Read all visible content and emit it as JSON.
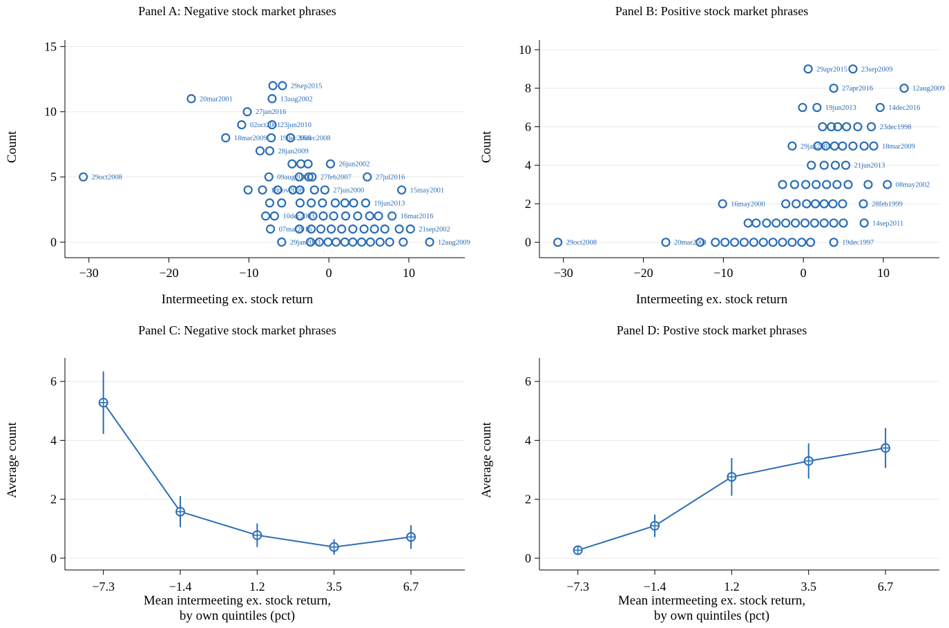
{
  "chart_data": [
    {
      "id": "A",
      "type": "scatter",
      "title": "Panel A: Negative stock market phrases",
      "xlabel": "Intermeeting ex. stock return",
      "xlabel2": "",
      "ylabel": "Count",
      "xlim": [
        -33,
        17
      ],
      "ylim": [
        -1.2,
        15.5
      ],
      "xticks": [
        -30,
        -20,
        -10,
        0,
        10
      ],
      "yticks": [
        0,
        5,
        10,
        15
      ],
      "grid": true,
      "color": "#2a6db5",
      "points": [
        {
          "x": -30.7,
          "y": 5,
          "label": "29oct2008"
        },
        {
          "x": -17.2,
          "y": 11,
          "label": "20mar2001"
        },
        {
          "x": -12.9,
          "y": 8,
          "label": "18mar2009"
        },
        {
          "x": -10.2,
          "y": 10,
          "label": "27jan2016"
        },
        {
          "x": -10.9,
          "y": 9,
          "label": "02oct2001"
        },
        {
          "x": -7.1,
          "y": 9,
          "label": "23jun2010"
        },
        {
          "x": -7.0,
          "y": 12,
          "label": ""
        },
        {
          "x": -5.8,
          "y": 12,
          "label": "29sep2015"
        },
        {
          "x": -7.1,
          "y": 11,
          "label": "13aug2002"
        },
        {
          "x": -7.2,
          "y": 8,
          "label": "19dec2008"
        },
        {
          "x": -4.8,
          "y": 8,
          "label": "16dec2008"
        },
        {
          "x": -8.6,
          "y": 7,
          "label": ""
        },
        {
          "x": -7.4,
          "y": 7,
          "label": "28jan2009"
        },
        {
          "x": -4.6,
          "y": 6,
          "label": ""
        },
        {
          "x": -3.5,
          "y": 6,
          "label": ""
        },
        {
          "x": -2.6,
          "y": 6,
          "label": ""
        },
        {
          "x": 0.2,
          "y": 6,
          "label": "26jun2002"
        },
        {
          "x": -7.5,
          "y": 5,
          "label": "09aug2011"
        },
        {
          "x": -3.7,
          "y": 5,
          "label": ""
        },
        {
          "x": -2.5,
          "y": 5,
          "label": ""
        },
        {
          "x": -2.1,
          "y": 5,
          "label": "27feb2007"
        },
        {
          "x": 4.8,
          "y": 5,
          "label": "27jul2016"
        },
        {
          "x": -10.1,
          "y": 4,
          "label": ""
        },
        {
          "x": -8.3,
          "y": 4,
          "label": "18nov2008"
        },
        {
          "x": -6.4,
          "y": 4,
          "label": ""
        },
        {
          "x": -4.5,
          "y": 4,
          "label": ""
        },
        {
          "x": -3.6,
          "y": 4,
          "label": ""
        },
        {
          "x": -1.8,
          "y": 4,
          "label": ""
        },
        {
          "x": -0.5,
          "y": 4,
          "label": "27jun2000"
        },
        {
          "x": 9.1,
          "y": 4,
          "label": "15may2001"
        },
        {
          "x": -7.4,
          "y": 3,
          "label": ""
        },
        {
          "x": -5.9,
          "y": 3,
          "label": ""
        },
        {
          "x": -3.6,
          "y": 3,
          "label": ""
        },
        {
          "x": -2.2,
          "y": 3,
          "label": ""
        },
        {
          "x": -0.8,
          "y": 3,
          "label": ""
        },
        {
          "x": 0.8,
          "y": 3,
          "label": ""
        },
        {
          "x": 2.0,
          "y": 3,
          "label": ""
        },
        {
          "x": 3.1,
          "y": 3,
          "label": ""
        },
        {
          "x": 4.6,
          "y": 3,
          "label": "19jun2013"
        },
        {
          "x": -7.9,
          "y": 2,
          "label": ""
        },
        {
          "x": -6.8,
          "y": 2,
          "label": "10dec2003"
        },
        {
          "x": -3.6,
          "y": 2,
          "label": ""
        },
        {
          "x": -2.0,
          "y": 2,
          "label": ""
        },
        {
          "x": -0.7,
          "y": 2,
          "label": ""
        },
        {
          "x": 0.6,
          "y": 2,
          "label": ""
        },
        {
          "x": 2.1,
          "y": 2,
          "label": ""
        },
        {
          "x": 3.6,
          "y": 2,
          "label": ""
        },
        {
          "x": 5.1,
          "y": 2,
          "label": ""
        },
        {
          "x": 6.2,
          "y": 2,
          "label": ""
        },
        {
          "x": 7.9,
          "y": 2,
          "label": "16mar2016"
        },
        {
          "x": -7.3,
          "y": 1,
          "label": "07mar2016"
        },
        {
          "x": -3.7,
          "y": 1,
          "label": ""
        },
        {
          "x": -2.2,
          "y": 1,
          "label": ""
        },
        {
          "x": -1.0,
          "y": 1,
          "label": ""
        },
        {
          "x": 0.3,
          "y": 1,
          "label": ""
        },
        {
          "x": 1.6,
          "y": 1,
          "label": ""
        },
        {
          "x": 3.0,
          "y": 1,
          "label": ""
        },
        {
          "x": 4.4,
          "y": 1,
          "label": ""
        },
        {
          "x": 5.7,
          "y": 1,
          "label": ""
        },
        {
          "x": 7.0,
          "y": 1,
          "label": ""
        },
        {
          "x": 8.8,
          "y": 1,
          "label": ""
        },
        {
          "x": 10.2,
          "y": 1,
          "label": "21sep2002"
        },
        {
          "x": -5.9,
          "y": 0,
          "label": "29jan2003"
        },
        {
          "x": -2.3,
          "y": 0,
          "label": ""
        },
        {
          "x": -1.2,
          "y": 0,
          "label": ""
        },
        {
          "x": -0.1,
          "y": 0,
          "label": ""
        },
        {
          "x": 0.9,
          "y": 0,
          "label": ""
        },
        {
          "x": 2.0,
          "y": 0,
          "label": ""
        },
        {
          "x": 3.0,
          "y": 0,
          "label": ""
        },
        {
          "x": 4.1,
          "y": 0,
          "label": ""
        },
        {
          "x": 5.2,
          "y": 0,
          "label": ""
        },
        {
          "x": 6.4,
          "y": 0,
          "label": ""
        },
        {
          "x": 7.6,
          "y": 0,
          "label": ""
        },
        {
          "x": 9.3,
          "y": 0,
          "label": ""
        },
        {
          "x": 12.6,
          "y": 0,
          "label": "12aug2009"
        }
      ]
    },
    {
      "id": "B",
      "type": "scatter",
      "title": "Panel B: Positive stock market phrases",
      "xlabel": "Intermeeting ex. stock return",
      "xlabel2": "",
      "ylabel": "Count",
      "xlim": [
        -33,
        17
      ],
      "ylim": [
        -0.8,
        10.5
      ],
      "xticks": [
        -30,
        -20,
        -10,
        0,
        10
      ],
      "yticks": [
        0,
        2,
        4,
        6,
        8,
        10
      ],
      "grid": true,
      "color": "#2a6db5",
      "points": [
        {
          "x": 0.6,
          "y": 9,
          "label": "29apr2015"
        },
        {
          "x": 6.2,
          "y": 9,
          "label": "23sep2009"
        },
        {
          "x": 3.8,
          "y": 8,
          "label": "27apr2016"
        },
        {
          "x": 12.6,
          "y": 8,
          "label": "12aug2009"
        },
        {
          "x": -0.1,
          "y": 7,
          "label": ""
        },
        {
          "x": 1.7,
          "y": 7,
          "label": "19jun2013"
        },
        {
          "x": 9.6,
          "y": 7,
          "label": "14dec2016"
        },
        {
          "x": 2.4,
          "y": 6,
          "label": ""
        },
        {
          "x": 3.5,
          "y": 6,
          "label": ""
        },
        {
          "x": 4.3,
          "y": 6,
          "label": ""
        },
        {
          "x": 5.4,
          "y": 6,
          "label": ""
        },
        {
          "x": 6.8,
          "y": 6,
          "label": ""
        },
        {
          "x": 8.5,
          "y": 6,
          "label": "23dec1998"
        },
        {
          "x": -1.4,
          "y": 5,
          "label": "29jan2003"
        },
        {
          "x": 1.8,
          "y": 5,
          "label": ""
        },
        {
          "x": 2.8,
          "y": 5,
          "label": ""
        },
        {
          "x": 3.9,
          "y": 5,
          "label": ""
        },
        {
          "x": 4.9,
          "y": 5,
          "label": ""
        },
        {
          "x": 6.2,
          "y": 5,
          "label": ""
        },
        {
          "x": 7.6,
          "y": 5,
          "label": ""
        },
        {
          "x": 8.8,
          "y": 5,
          "label": "18mar2009"
        },
        {
          "x": 1.0,
          "y": 4,
          "label": ""
        },
        {
          "x": 2.6,
          "y": 4,
          "label": ""
        },
        {
          "x": 4.0,
          "y": 4,
          "label": ""
        },
        {
          "x": 5.3,
          "y": 4,
          "label": "21jun2013"
        },
        {
          "x": -2.6,
          "y": 3,
          "label": ""
        },
        {
          "x": -1.1,
          "y": 3,
          "label": ""
        },
        {
          "x": 0.3,
          "y": 3,
          "label": ""
        },
        {
          "x": 1.6,
          "y": 3,
          "label": ""
        },
        {
          "x": 2.9,
          "y": 3,
          "label": ""
        },
        {
          "x": 4.2,
          "y": 3,
          "label": ""
        },
        {
          "x": 5.6,
          "y": 3,
          "label": ""
        },
        {
          "x": 8.1,
          "y": 3,
          "label": ""
        },
        {
          "x": 10.5,
          "y": 3,
          "label": "08may2002"
        },
        {
          "x": -10.1,
          "y": 2,
          "label": "16may2000"
        },
        {
          "x": -2.2,
          "y": 2,
          "label": ""
        },
        {
          "x": -0.9,
          "y": 2,
          "label": ""
        },
        {
          "x": 0.4,
          "y": 2,
          "label": ""
        },
        {
          "x": 1.5,
          "y": 2,
          "label": ""
        },
        {
          "x": 2.6,
          "y": 2,
          "label": ""
        },
        {
          "x": 3.7,
          "y": 2,
          "label": ""
        },
        {
          "x": 4.9,
          "y": 2,
          "label": ""
        },
        {
          "x": 7.5,
          "y": 2,
          "label": "28feb1999"
        },
        {
          "x": -6.9,
          "y": 1,
          "label": ""
        },
        {
          "x": -5.9,
          "y": 1,
          "label": ""
        },
        {
          "x": -4.6,
          "y": 1,
          "label": ""
        },
        {
          "x": -3.4,
          "y": 1,
          "label": ""
        },
        {
          "x": -2.2,
          "y": 1,
          "label": ""
        },
        {
          "x": -1.0,
          "y": 1,
          "label": ""
        },
        {
          "x": 0.2,
          "y": 1,
          "label": ""
        },
        {
          "x": 1.4,
          "y": 1,
          "label": ""
        },
        {
          "x": 2.6,
          "y": 1,
          "label": ""
        },
        {
          "x": 3.8,
          "y": 1,
          "label": ""
        },
        {
          "x": 5.0,
          "y": 1,
          "label": ""
        },
        {
          "x": 7.6,
          "y": 1,
          "label": "14sep2011"
        },
        {
          "x": -30.7,
          "y": 0,
          "label": "29oct2008"
        },
        {
          "x": -17.2,
          "y": 0,
          "label": "20mar2001"
        },
        {
          "x": -12.9,
          "y": 0,
          "label": ""
        },
        {
          "x": -11.0,
          "y": 0,
          "label": ""
        },
        {
          "x": -9.8,
          "y": 0,
          "label": ""
        },
        {
          "x": -8.6,
          "y": 0,
          "label": ""
        },
        {
          "x": -7.4,
          "y": 0,
          "label": ""
        },
        {
          "x": -6.2,
          "y": 0,
          "label": ""
        },
        {
          "x": -5.0,
          "y": 0,
          "label": ""
        },
        {
          "x": -3.8,
          "y": 0,
          "label": ""
        },
        {
          "x": -2.6,
          "y": 0,
          "label": ""
        },
        {
          "x": -1.4,
          "y": 0,
          "label": ""
        },
        {
          "x": -0.2,
          "y": 0,
          "label": ""
        },
        {
          "x": 0.9,
          "y": 0,
          "label": ""
        },
        {
          "x": 3.8,
          "y": 0,
          "label": "19dec1997"
        }
      ]
    },
    {
      "id": "C",
      "type": "line",
      "title": "Panel C: Negative stock market phrases",
      "xlabel": "Mean intermeeting ex. stock return,",
      "xlabel2": "by own quintiles (pct)",
      "ylabel": "Average count",
      "categories": [
        "−7.3",
        "−1.4",
        "1.2",
        "3.5",
        "6.7"
      ],
      "x": [
        1,
        2,
        3,
        4,
        5
      ],
      "xlim": [
        0.5,
        5.7
      ],
      "ylim": [
        -0.4,
        6.8
      ],
      "yticks": [
        0,
        2,
        4,
        6
      ],
      "grid": true,
      "color": "#2a6db5",
      "series": [
        {
          "values": [
            5.28,
            1.58,
            0.78,
            0.38,
            0.72
          ],
          "ci_low": [
            4.22,
            1.05,
            0.38,
            0.12,
            0.32
          ],
          "ci_high": [
            6.34,
            2.11,
            1.18,
            0.64,
            1.12
          ]
        }
      ]
    },
    {
      "id": "D",
      "type": "line",
      "title": "Panel D: Postive stock market phrases",
      "xlabel": "Mean intermeeting ex. stock return,",
      "xlabel2": "by own quintiles (pct)",
      "ylabel": "Average count",
      "categories": [
        "−7.3",
        "−1.4",
        "1.2",
        "3.5",
        "6.7"
      ],
      "x": [
        1,
        2,
        3,
        4,
        5
      ],
      "xlim": [
        0.5,
        5.7
      ],
      "ylim": [
        -0.4,
        6.8
      ],
      "yticks": [
        0,
        2,
        4,
        6
      ],
      "grid": true,
      "color": "#2a6db5",
      "series": [
        {
          "values": [
            0.27,
            1.1,
            2.76,
            3.3,
            3.74
          ],
          "ci_low": [
            0.19,
            0.72,
            2.12,
            2.7,
            3.06
          ],
          "ci_high": [
            0.35,
            1.48,
            3.4,
            3.9,
            4.42
          ]
        }
      ]
    }
  ]
}
